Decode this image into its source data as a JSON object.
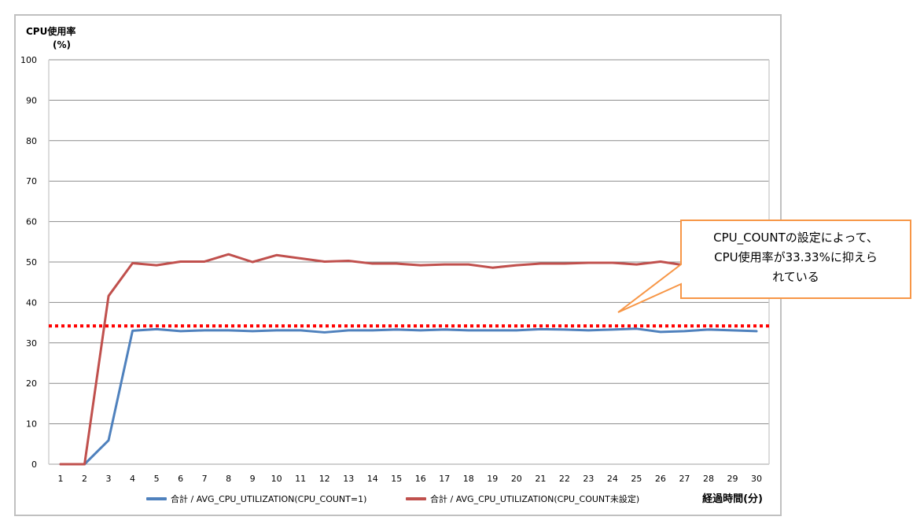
{
  "chart_data": {
    "type": "line",
    "title": "",
    "ylabel": "CPU使用率",
    "ylabel_unit": "(%)",
    "xlabel": "経過時間(分)",
    "ylim": [
      0,
      100
    ],
    "yticks": [
      0,
      10,
      20,
      30,
      40,
      50,
      60,
      70,
      80,
      90,
      100
    ],
    "grid": true,
    "legend_position": "bottom",
    "categories": [
      1,
      2,
      3,
      4,
      5,
      6,
      7,
      8,
      9,
      10,
      11,
      12,
      13,
      14,
      15,
      16,
      17,
      18,
      19,
      20,
      21,
      22,
      23,
      24,
      25,
      26,
      27,
      28,
      29,
      30
    ],
    "series": [
      {
        "name": "合計 / AVG_CPU_UTILIZATION(CPU_COUNT=1)",
        "color": "#4f81bd",
        "values": [
          0,
          0,
          5.9,
          33.0,
          33.4,
          32.9,
          33.1,
          33.1,
          32.9,
          33.1,
          33.1,
          32.6,
          33.1,
          33.1,
          33.3,
          33.1,
          33.3,
          33.1,
          33.1,
          33.1,
          33.4,
          33.3,
          33.1,
          33.3,
          33.5,
          32.7,
          32.9,
          33.3,
          33.1,
          32.9
        ]
      },
      {
        "name": "合計 / AVG_CPU_UTILIZATION(CPU_COUNT未設定)",
        "color": "#c0504d",
        "values": [
          0,
          0,
          41.6,
          49.7,
          49.2,
          50.1,
          50.1,
          51.9,
          50.0,
          51.7,
          50.9,
          50.1,
          50.3,
          49.6,
          49.6,
          49.2,
          49.4,
          49.4,
          48.6,
          49.2,
          49.6,
          49.6,
          49.8,
          49.8,
          49.4,
          50.1,
          49.2,
          49.5,
          49.5,
          49.5
        ]
      }
    ],
    "reference_line": {
      "value": 34.2,
      "color": "#ff0000",
      "style": "dotted"
    },
    "annotations": [
      {
        "text": "CPU_COUNTの設定によって、CPU使用率が33.33%に抑えられている",
        "border_color": "#f79646",
        "points_to": {
          "x": 24.5,
          "y": 37.5
        }
      }
    ]
  },
  "legend": {
    "series1": "合計 / AVG_CPU_UTILIZATION(CPU_COUNT=1)",
    "series2": "合計 / AVG_CPU_UTILIZATION(CPU_COUNT未設定)"
  },
  "axis": {
    "y_title": "CPU使用率",
    "y_unit": "(%)",
    "x_title": "経過時間(分)"
  },
  "callout": {
    "line1": "CPU_COUNTの設定によって、",
    "line2": "CPU使用率が33.33%に抑えら",
    "line3": "れている"
  }
}
